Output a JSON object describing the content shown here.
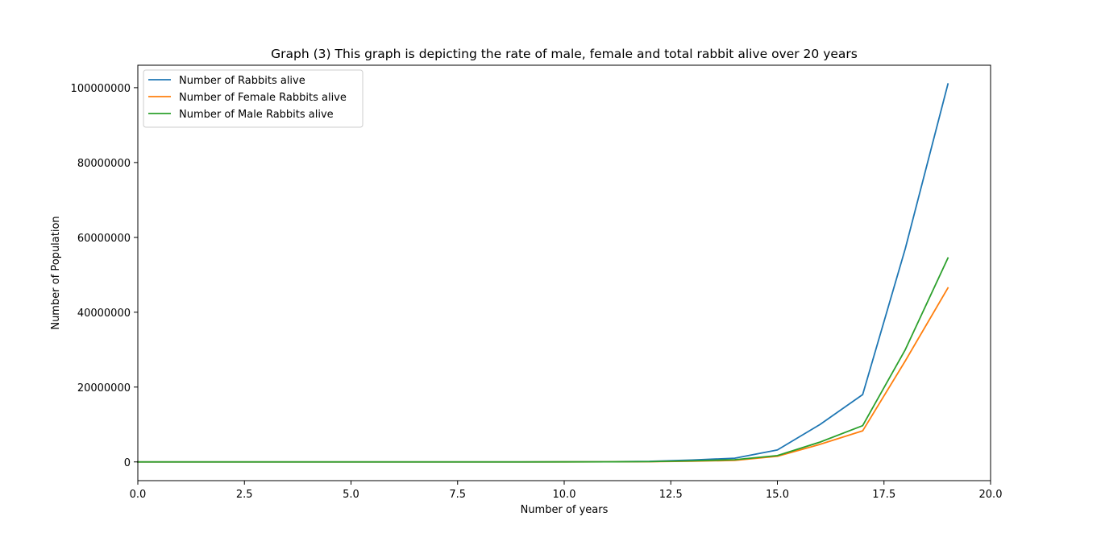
{
  "chart_data": {
    "type": "line",
    "title": "Graph (3) This graph is depicting the rate of male, female and total rabbit alive over 20 years",
    "xlabel": "Number of years",
    "ylabel": "Number of Population",
    "xlim": [
      0,
      20
    ],
    "ylim": [
      -5000000,
      106000000
    ],
    "xticks": [
      0,
      2.5,
      5,
      7.5,
      10,
      12.5,
      15,
      17.5,
      20
    ],
    "xtick_labels": [
      "0.0",
      "2.5",
      "5.0",
      "7.5",
      "10.0",
      "12.5",
      "15.0",
      "17.5",
      "20.0"
    ],
    "yticks": [
      0,
      20000000,
      40000000,
      60000000,
      80000000,
      100000000
    ],
    "ytick_labels": [
      "0",
      "20000000",
      "40000000",
      "60000000",
      "80000000",
      "100000000"
    ],
    "grid": false,
    "legend_position": "top-left",
    "x": [
      0,
      1,
      2,
      3,
      4,
      5,
      6,
      7,
      8,
      9,
      10,
      11,
      12,
      13,
      14,
      15,
      16,
      17,
      18,
      19
    ],
    "series": [
      {
        "name": "Number of Rabbits alive",
        "color": "#1f77b4",
        "values": [
          2,
          2,
          4,
          6,
          10,
          16,
          26,
          42,
          68,
          110,
          25000,
          60000,
          150000,
          500000,
          1000000,
          3200000,
          10000000,
          18000000,
          57000000,
          101000000
        ]
      },
      {
        "name": "Number of Female Rabbits alive",
        "color": "#ff7f0e",
        "values": [
          1,
          1,
          2,
          3,
          5,
          8,
          13,
          21,
          34,
          55,
          10000,
          30000,
          70000,
          200000,
          400000,
          1500000,
          4700000,
          8300000,
          27000000,
          46500000
        ]
      },
      {
        "name": "Number of Male Rabbits alive",
        "color": "#2ca02c",
        "values": [
          1,
          1,
          2,
          3,
          5,
          8,
          13,
          21,
          34,
          55,
          15000,
          30000,
          80000,
          300000,
          600000,
          1700000,
          5300000,
          9700000,
          30000000,
          54500000
        ]
      }
    ]
  }
}
